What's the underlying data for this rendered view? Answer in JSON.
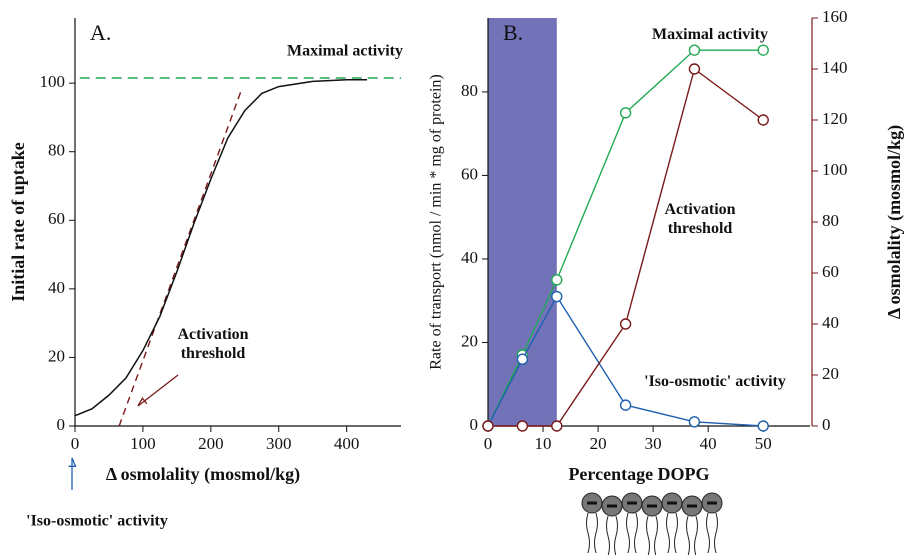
{
  "chart_data": [
    {
      "type": "line",
      "panel_label": "A.",
      "y_label": "Initial rate of uptake",
      "x_label": "Δ osmolality (mosmol/kg)",
      "xlim": [
        0,
        480
      ],
      "xticks": [
        0,
        100,
        200,
        300,
        400
      ],
      "ylim": [
        0,
        119
      ],
      "yticks": [
        0,
        20,
        40,
        60,
        80,
        100
      ],
      "x": [
        0,
        25,
        50,
        75,
        100,
        125,
        150,
        175,
        200,
        225,
        250,
        275,
        300,
        350,
        400,
        430
      ],
      "values": [
        3,
        5,
        9,
        14,
        22,
        32,
        45,
        59,
        72,
        84,
        92,
        97,
        99,
        100.5,
        101,
        101
      ],
      "color": "#111111",
      "tangent": {
        "x": [
          65,
          245
        ],
        "values": [
          0,
          98
        ],
        "color": "#7a1a1a"
      },
      "max_line": {
        "label": "Maximal activity",
        "x": [
          7,
          480
        ],
        "value": 101.5,
        "color": "#22aa55"
      },
      "threshold_label": [
        "Activation",
        "threshold"
      ],
      "threshold_color": "#7a1a1a",
      "iso_label": "'Iso-osmotic' activity",
      "iso_color": "#2060b0"
    },
    {
      "type": "line",
      "panel_label": "B.",
      "y_label": "Rate of transport (nmol / min * mg of protein)",
      "y2_label": "Δ osmolality (mosmol/kg)",
      "x_label": "Percentage DOPG",
      "xlim": [
        0,
        58.5
      ],
      "xticks": [
        0,
        10,
        20,
        30,
        40,
        50
      ],
      "ylim": [
        0,
        97.7
      ],
      "yticks": [
        0,
        20,
        40,
        60,
        80
      ],
      "y2lim": [
        0,
        160
      ],
      "y2ticks": [
        0,
        20,
        40,
        60,
        80,
        100,
        120,
        140,
        160
      ],
      "y2_color": "#7a1a1a",
      "highlight": {
        "x": [
          0,
          12.5
        ],
        "color": "#7272b8"
      },
      "x": [
        0,
        6.25,
        12.5,
        25,
        37.5,
        50
      ],
      "series": [
        {
          "label": [
            "Maximal activity"
          ],
          "color": "#22aa55",
          "values": [
            0,
            17,
            35,
            75,
            90,
            90
          ]
        },
        {
          "label": [
            "'Iso-osmotic' activity"
          ],
          "color": "#2060b0",
          "values": [
            0,
            16,
            31,
            5,
            1,
            0
          ]
        },
        {
          "label": [
            "Activation",
            "threshold"
          ],
          "color": "#7a1a1a",
          "axis": "y2",
          "values": [
            0,
            0,
            0,
            40,
            140,
            120
          ]
        }
      ]
    }
  ]
}
